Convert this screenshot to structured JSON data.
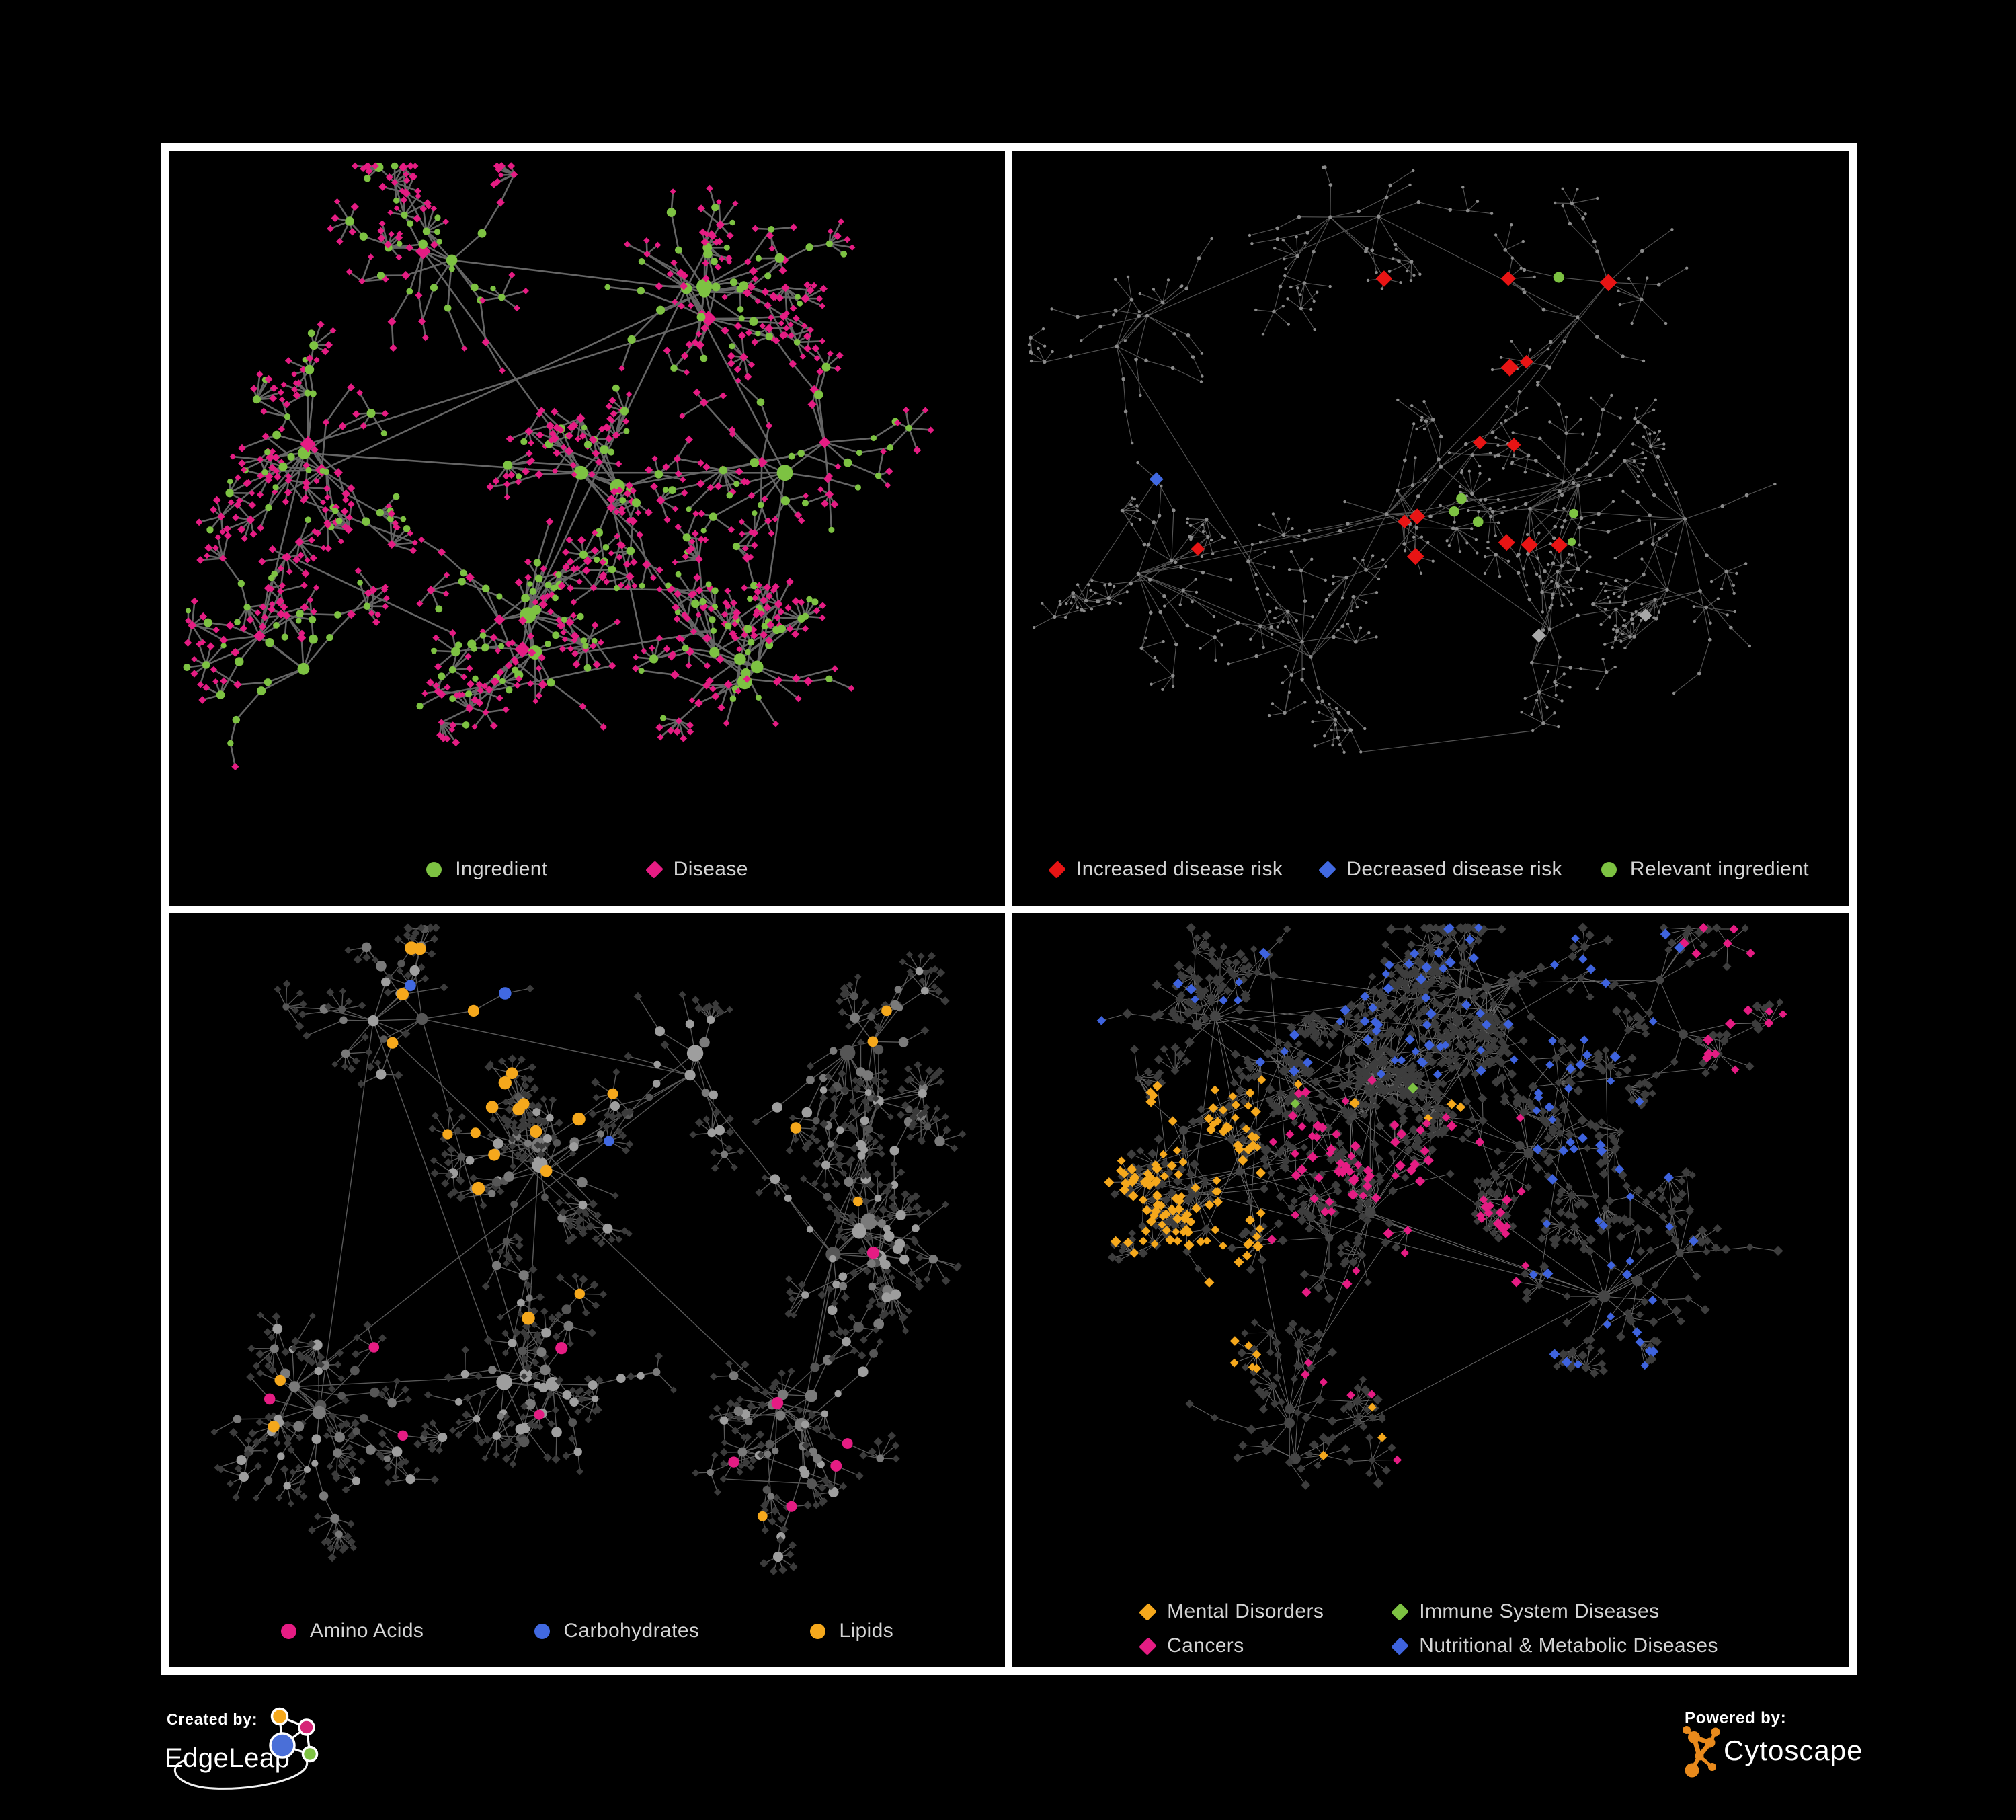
{
  "page": {
    "background": "#000000",
    "frame_color": "#ffffff"
  },
  "panels": [
    {
      "name": "ingredient-disease-network",
      "legend": [
        {
          "label": "Ingredient",
          "shape": "circle",
          "color": "#7dc242"
        },
        {
          "label": "Disease",
          "shape": "diamond",
          "color": "#e51c83"
        }
      ],
      "network": {
        "mode": "p1",
        "seed": 11,
        "clusters": 8,
        "clusterMinDist": 230,
        "clusterSpread": 72,
        "hubsMin": 2,
        "hubsMax": 4,
        "branchMin": 4,
        "branchMax": 9,
        "chainP": 0.75,
        "stepLen": 62,
        "fanP": 0.55,
        "fanMin": 3,
        "fanMax": 7,
        "extraLinks": 6,
        "tangle": 28,
        "tangleMax": 260,
        "edge": {
          "color": "#6e6e6e",
          "width": 2.6,
          "opacity": 0.92
        },
        "palette": {
          "ingredient": "#7dc242",
          "disease": "#e51c83"
        }
      }
    },
    {
      "name": "disease-risk-network",
      "legend": [
        {
          "label": "Increased disease risk",
          "shape": "diamond",
          "color": "#e81414"
        },
        {
          "label": "Decreased disease risk",
          "shape": "diamond",
          "color": "#4169e1"
        },
        {
          "label": "Relevant ingredient",
          "shape": "circle",
          "color": "#7dc242"
        }
      ],
      "network": {
        "mode": "p2",
        "seed": 27,
        "clusters": 9,
        "clusterMinDist": 215,
        "clusterSpread": 82,
        "hubsMin": 2,
        "hubsMax": 3,
        "branchMin": 4,
        "branchMax": 8,
        "chainP": 0.95,
        "stepLen": 58,
        "fanP": 0.42,
        "fanMin": 3,
        "fanMax": 6,
        "extraLinks": 5,
        "tangle": 24,
        "tangleMax": 280,
        "edge": {
          "color": "#5e5e5e",
          "width": 1.15,
          "opacity": 0.9
        },
        "palette": {
          "base": "#8b8b8b",
          "increased": "#e81414",
          "decreased": "#4169e1",
          "relevant": "#7dc242",
          "unchanged": "#a8a8a8"
        }
      }
    },
    {
      "name": "macronutrient-network",
      "legend": [
        {
          "label": "Amino Acids",
          "shape": "circle",
          "color": "#e51c83"
        },
        {
          "label": "Carbohydrates",
          "shape": "circle",
          "color": "#4169e1"
        },
        {
          "label": "Lipids",
          "shape": "circle",
          "color": "#f5a81c"
        }
      ],
      "network": {
        "mode": "p3",
        "seed": 63,
        "clusters": 8,
        "clusterMinDist": 225,
        "clusterSpread": 75,
        "hubsMin": 2,
        "hubsMax": 4,
        "branchMin": 4,
        "branchMax": 9,
        "chainP": 0.7,
        "stepLen": 60,
        "fanP": 0.5,
        "fanMin": 3,
        "fanMax": 8,
        "extraLinks": 7,
        "tangle": 36,
        "tangleMax": 300,
        "edge": {
          "color": "#949494",
          "width": 1.4,
          "opacity": 0.6
        },
        "palette": {
          "base1": "#9e9e9e",
          "leaf": "#3b3b3b",
          "amino": "#e51c83",
          "carb": "#4169e1",
          "lipid": "#f5a81c"
        }
      }
    },
    {
      "name": "disease-category-network",
      "legend": [
        {
          "label": "Mental Disorders",
          "shape": "diamond",
          "color": "#f5a81c"
        },
        {
          "label": "Immune System Diseases",
          "shape": "diamond",
          "color": "#7dc242"
        },
        {
          "label": "Cancers",
          "shape": "diamond",
          "color": "#e51c83"
        },
        {
          "label": "Nutritional & Metabolic Diseases",
          "shape": "diamond",
          "color": "#3e63de"
        }
      ],
      "network": {
        "mode": "p4",
        "seed": 94,
        "clusters": 9,
        "clusterMinDist": 200,
        "clusterSpread": 88,
        "hubsMin": 2,
        "hubsMax": 4,
        "branchMin": 5,
        "branchMax": 10,
        "chainP": 0.7,
        "stepLen": 56,
        "fanP": 0.62,
        "fanMin": 4,
        "fanMax": 10,
        "extraLinks": 9,
        "tangle": 70,
        "tangleMax": 330,
        "edge": {
          "color": "#9f9f9f",
          "width": 1.0,
          "opacity": 0.65
        },
        "palette": {
          "baseNode": "#3d3d3d",
          "mental": "#f5a81c",
          "immune": "#7dc242",
          "cancer": "#e51c83",
          "nutri": "#3e63de"
        }
      }
    }
  ],
  "footer": {
    "created_by_label": "Created by:",
    "created_by_brand": "EdgeLeap",
    "edgeleap_colors": {
      "blue": "#4a6fd8",
      "orange": "#f5a81c",
      "pink": "#d62477",
      "green": "#7dc242"
    },
    "powered_by_label": "Powered by:",
    "powered_by_brand": "Cytoscape",
    "cytoscape_color": "#e98a1c"
  }
}
